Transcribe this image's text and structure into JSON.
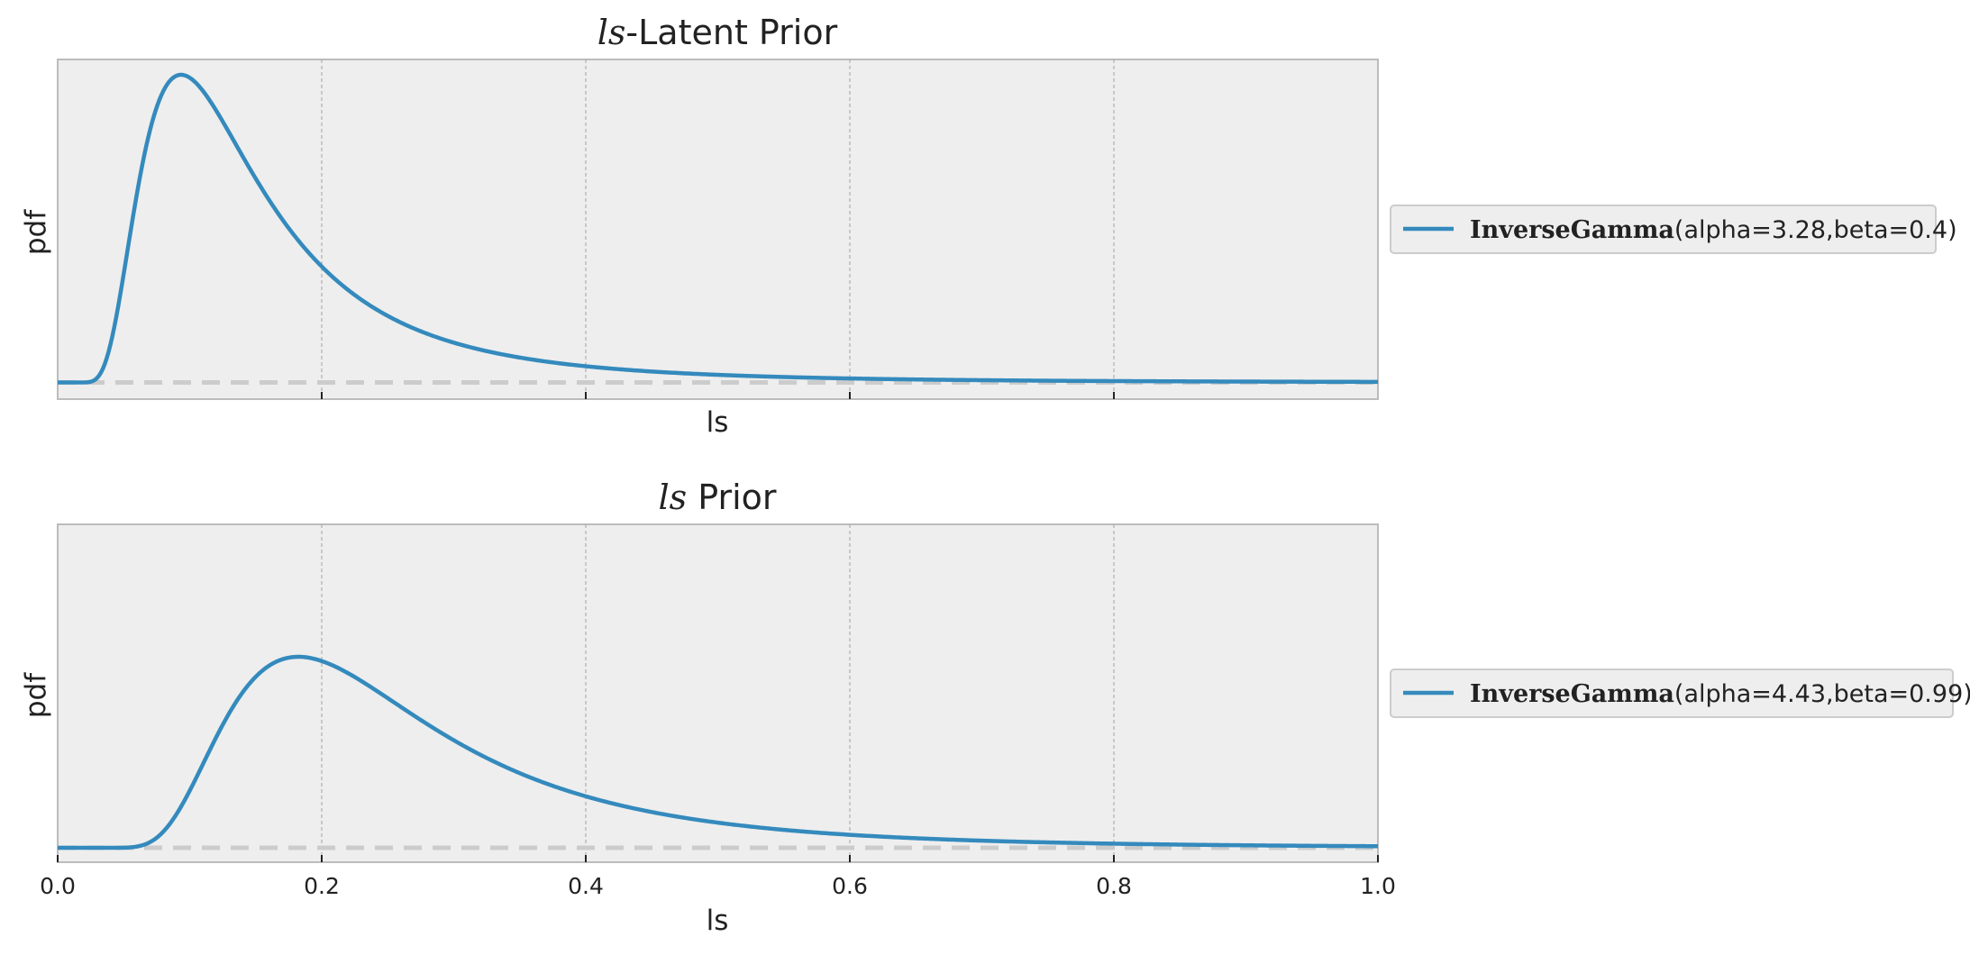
{
  "chart_data": [
    {
      "type": "line",
      "title_math": "ls",
      "title_rest": "-Latent Prior",
      "xlabel": "ls",
      "ylabel": "pdf",
      "xlim": [
        0.0,
        1.0
      ],
      "x_tick_values": [
        0.2,
        0.4,
        0.6,
        0.8
      ],
      "show_x_tick_labels": false,
      "grid": "vertical",
      "legend_placement": "right",
      "series": [
        {
          "name_bold": "InverseGamma",
          "name_rest": "(alpha=3.28,beta=0.4)",
          "distribution": "InverseGamma",
          "alpha": 3.28,
          "beta": 0.4,
          "color": "#348abd"
        }
      ]
    },
    {
      "type": "line",
      "title_math": "ls",
      "title_rest": " Prior",
      "xlabel": "ls",
      "ylabel": "pdf",
      "xlim": [
        0.0,
        1.0
      ],
      "x_tick_values": [
        0.0,
        0.2,
        0.4,
        0.6,
        0.8,
        1.0
      ],
      "x_tick_labels": [
        "0.0",
        "0.2",
        "0.4",
        "0.6",
        "0.8",
        "1.0"
      ],
      "show_x_tick_labels": true,
      "grid": "vertical",
      "legend_placement": "right",
      "series": [
        {
          "name_bold": "InverseGamma",
          "name_rest": "(alpha=4.43,beta=0.99)",
          "distribution": "InverseGamma",
          "alpha": 4.43,
          "beta": 0.99,
          "color": "#348abd"
        }
      ]
    }
  ],
  "colors": {
    "axes_face": "#eeeeee",
    "axes_edge": "#bcbcbc",
    "grid": "#b0b0b0",
    "baseline": "#cccccc",
    "series": "#348abd"
  }
}
